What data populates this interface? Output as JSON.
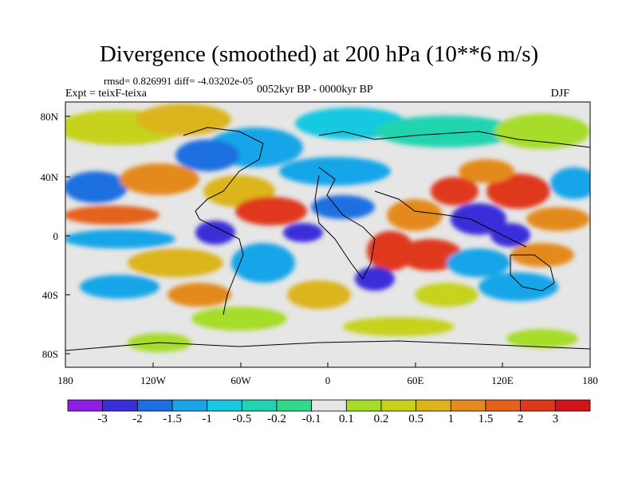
{
  "title": "Divergence (smoothed) at 200 hPa (10**6 m/s)",
  "stats": "rmsd= 0.826991 diff= -4.03202e-05",
  "experiment": "Expt = teixF-teixa",
  "period": "0052kyr BP - 0000kyr BP",
  "season": "DJF",
  "lat_labels": [
    "80N",
    "40N",
    "0",
    "40S",
    "80S"
  ],
  "lon_labels": [
    "180",
    "120W",
    "60W",
    "0",
    "60E",
    "120E",
    "180"
  ],
  "colorbar": {
    "colors": [
      "#8c1ee6",
      "#3a2fd8",
      "#1e6fe0",
      "#19a5e8",
      "#18c8e0",
      "#21d3b0",
      "#33d98a",
      "#e6e6e6",
      "#a6dc2a",
      "#c6d21a",
      "#dcb41c",
      "#e48a1e",
      "#e4621e",
      "#e0381c",
      "#d2141a"
    ],
    "labels": [
      "-3",
      "-2",
      "-1.5",
      "-1",
      "-0.5",
      "-0.2",
      "-0.1",
      "0.1",
      "0.2",
      "0.5",
      "1",
      "1.5",
      "2",
      "3"
    ]
  }
}
